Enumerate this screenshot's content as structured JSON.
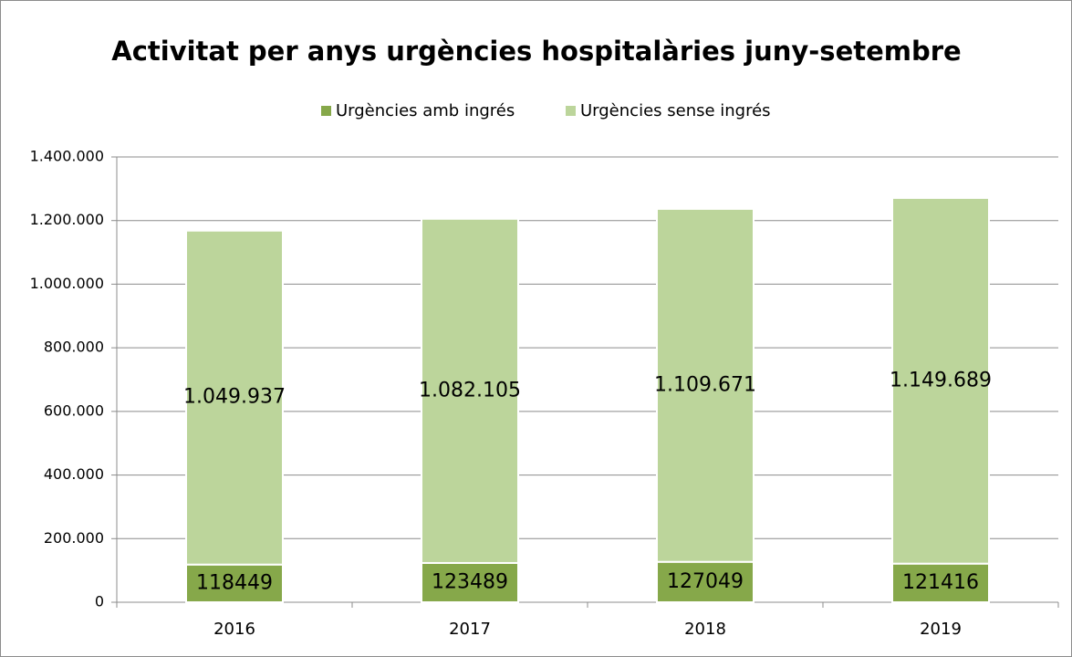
{
  "chart_data": {
    "type": "stacked_bar",
    "title": "Activitat per anys urgències hospitalàries juny-setembre",
    "categories": [
      "2016",
      "2017",
      "2018",
      "2019"
    ],
    "series": [
      {
        "name": "Urgències amb ingrés",
        "color": "#86a84a",
        "values": [
          118449,
          123489,
          127049,
          121416
        ]
      },
      {
        "name": "Urgències sense ingrés",
        "color": "#bcd59b",
        "values": [
          1049937,
          1082105,
          1109671,
          1149689
        ],
        "value_labels": [
          "1.049.937",
          "1.082.105",
          "1.109.671",
          "1.149.689"
        ]
      }
    ],
    "ylim": [
      0,
      1400000
    ],
    "yticks": [
      0,
      {
        "value": 200000,
        "label": "200.000"
      },
      {
        "value": 400000,
        "label": "400.000"
      },
      {
        "value": 600000,
        "label": "600.000"
      },
      {
        "value": 800000,
        "label": "800.000"
      },
      {
        "value": 1000000,
        "label": "1.000.000"
      },
      {
        "value": 1200000,
        "label": "1.200.000"
      },
      {
        "value": 1400000,
        "label": "1.400.000"
      }
    ],
    "grid": true,
    "legend": "top"
  }
}
